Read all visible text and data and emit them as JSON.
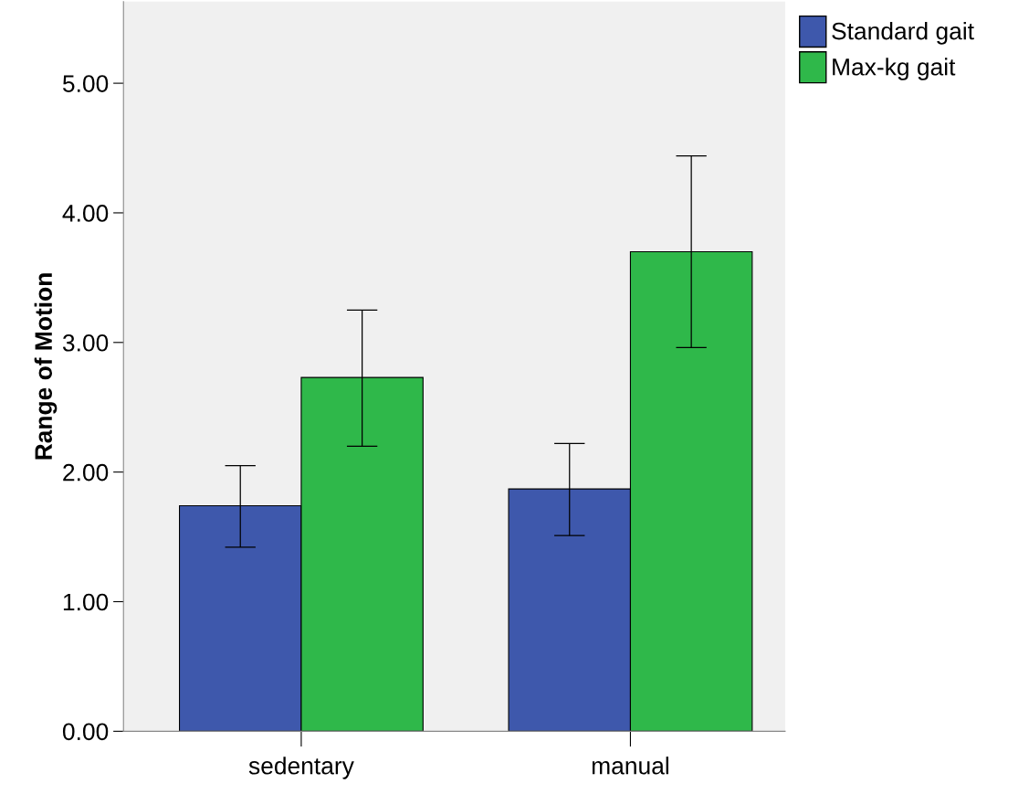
{
  "chart_data": {
    "type": "bar",
    "ylabel": "Range of Motion",
    "categories": [
      "sedentary",
      "manual"
    ],
    "series": [
      {
        "name": "Standard gait",
        "color": "#3e58ac",
        "values": [
          1.74,
          1.87
        ],
        "errors": [
          [
            1.42,
            2.05
          ],
          [
            1.51,
            2.22
          ]
        ]
      },
      {
        "name": "Max-kg gait",
        "color": "#2fb84a",
        "values": [
          2.73,
          3.7
        ],
        "errors": [
          [
            2.2,
            3.25
          ],
          [
            2.96,
            4.44
          ]
        ]
      }
    ],
    "ylim": [
      0,
      5.63
    ],
    "yticks": [
      {
        "value": 0,
        "label": "0.00"
      },
      {
        "value": 1,
        "label": "1.00"
      },
      {
        "value": 2,
        "label": "2.00"
      },
      {
        "value": 3,
        "label": "3.00"
      },
      {
        "value": 4,
        "label": "4.00"
      },
      {
        "value": 5,
        "label": "5.00"
      }
    ],
    "grid": false,
    "legend": "top right"
  }
}
